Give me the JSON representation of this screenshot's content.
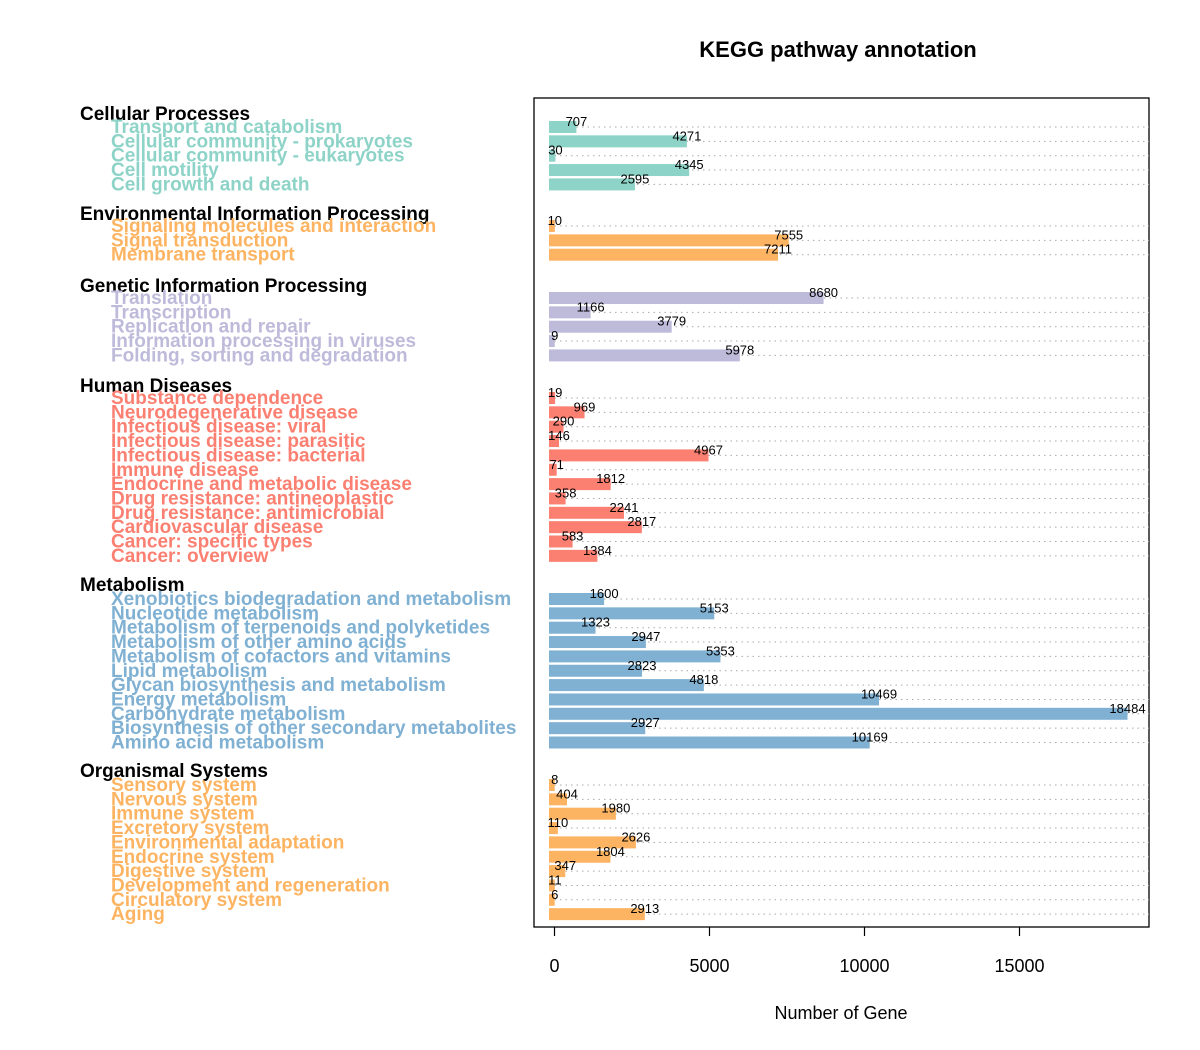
{
  "chart_data": {
    "type": "bar",
    "orientation": "horizontal",
    "title": "KEGG pathway annotation",
    "xlabel": "Number of Gene",
    "xlim": [
      0,
      18484
    ],
    "xticks": [
      0,
      5000,
      10000,
      15000
    ],
    "grid": "dotted horizontal lines per bar",
    "groups": [
      {
        "name": "Cellular Processes",
        "color": "#8DD3C7",
        "items": [
          {
            "label": "Transport and catabolism",
            "value": 707
          },
          {
            "label": "Cellular community - prokaryotes",
            "value": 4271
          },
          {
            "label": "Cellular community - eukaryotes",
            "value": 30
          },
          {
            "label": "Cell motility",
            "value": 4345
          },
          {
            "label": "Cell growth and death",
            "value": 2595
          }
        ]
      },
      {
        "name": "Environmental Information Processing",
        "color": "#FDB462",
        "items": [
          {
            "label": "Signaling molecules and interaction",
            "value": 10
          },
          {
            "label": "Signal transduction",
            "value": 7555
          },
          {
            "label": "Membrane transport",
            "value": 7211
          }
        ]
      },
      {
        "name": "Genetic Information Processing",
        "color": "#BEBADA",
        "items": [
          {
            "label": "Translation",
            "value": 8680
          },
          {
            "label": "Transcription",
            "value": 1166
          },
          {
            "label": "Replication and repair",
            "value": 3779
          },
          {
            "label": "Information processing in viruses",
            "value": 9
          },
          {
            "label": "Folding, sorting and degradation",
            "value": 5978
          }
        ]
      },
      {
        "name": "Human Diseases",
        "color": "#FB8072",
        "items": [
          {
            "label": "Substance dependence",
            "value": 19
          },
          {
            "label": "Neurodegenerative disease",
            "value": 969
          },
          {
            "label": "Infectious disease: viral",
            "value": 290
          },
          {
            "label": "Infectious disease: parasitic",
            "value": 146
          },
          {
            "label": "Infectious disease: bacterial",
            "value": 4967
          },
          {
            "label": "Immune disease",
            "value": 71
          },
          {
            "label": "Endocrine and metabolic disease",
            "value": 1812
          },
          {
            "label": "Drug resistance: antineoplastic",
            "value": 358
          },
          {
            "label": "Drug resistance: antimicrobial",
            "value": 2241
          },
          {
            "label": "Cardiovascular disease",
            "value": 2817
          },
          {
            "label": "Cancer: specific types",
            "value": 583
          },
          {
            "label": "Cancer: overview",
            "value": 1384
          }
        ]
      },
      {
        "name": "Metabolism",
        "color": "#80B1D3",
        "items": [
          {
            "label": "Xenobiotics biodegradation and metabolism",
            "value": 1600
          },
          {
            "label": "Nucleotide metabolism",
            "value": 5153
          },
          {
            "label": "Metabolism of terpenoids and polyketides",
            "value": 1323
          },
          {
            "label": "Metabolism of other amino acids",
            "value": 2947
          },
          {
            "label": "Metabolism of cofactors and vitamins",
            "value": 5353
          },
          {
            "label": "Lipid metabolism",
            "value": 2823
          },
          {
            "label": "Glycan biosynthesis and metabolism",
            "value": 4818
          },
          {
            "label": "Energy metabolism",
            "value": 10469
          },
          {
            "label": "Carbohydrate metabolism",
            "value": 18484
          },
          {
            "label": "Biosynthesis of other secondary metabolites",
            "value": 2927
          },
          {
            "label": "Amino acid metabolism",
            "value": 10169
          }
        ]
      },
      {
        "name": "Organismal Systems",
        "color": "#FDB462",
        "items": [
          {
            "label": "Sensory system",
            "value": 8
          },
          {
            "label": "Nervous system",
            "value": 404
          },
          {
            "label": "Immune system",
            "value": 1980
          },
          {
            "label": "Excretory system",
            "value": 110
          },
          {
            "label": "Environmental adaptation",
            "value": 2626
          },
          {
            "label": "Endocrine system",
            "value": 1804
          },
          {
            "label": "Digestive system",
            "value": 347
          },
          {
            "label": "Development and regeneration",
            "value": 11
          },
          {
            "label": "Circulatory system",
            "value": 6
          },
          {
            "label": "Aging",
            "value": 2913
          }
        ]
      }
    ]
  }
}
